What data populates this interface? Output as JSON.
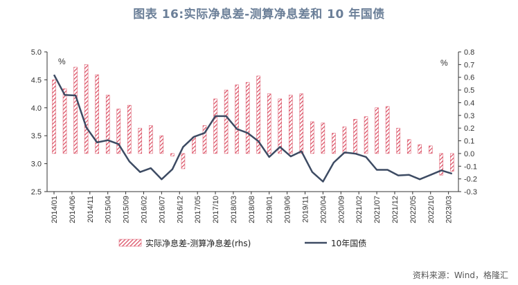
{
  "title": "图表 16:实际净息差-测算净息差和 10 年国债",
  "source": "资料来源：Wind，格隆汇",
  "chart_data": {
    "type": "bar+line",
    "left_axis": {
      "unit": "%",
      "ylim": [
        2.5,
        5.0
      ],
      "ticks": [
        "2.5",
        "3.0",
        "3.5",
        "4.0",
        "4.5",
        "5.0"
      ]
    },
    "right_axis": {
      "unit": "%",
      "ylim": [
        -0.3,
        0.8
      ],
      "ticks": [
        "-0.3",
        "-0.2",
        "-0.1",
        "0.0",
        "0.1",
        "0.2",
        "0.3",
        "0.4",
        "0.5",
        "0.6",
        "0.7",
        "0.8"
      ]
    },
    "x_tick_labels": [
      "2014/01",
      "2014/06",
      "2014/11",
      "2015/04",
      "2015/09",
      "2016/02",
      "2016/07",
      "2016/12",
      "2017/05",
      "2017/10",
      "2018/03",
      "2018/08",
      "2019/01",
      "2019/06",
      "2019/11",
      "2020/04",
      "2020/09",
      "2021/02",
      "2021/07",
      "2021/12",
      "2022/05",
      "2022/10",
      "2023/03"
    ],
    "series": [
      {
        "name": "实际净息差-测算净息差(rhs)",
        "type": "bar",
        "axis": "right",
        "color": "#d9475c",
        "x": [
          "2014/01",
          "2014/04",
          "2014/07",
          "2014/10",
          "2015/01",
          "2015/04",
          "2015/07",
          "2015/10",
          "2016/01",
          "2016/04",
          "2016/07",
          "2016/10",
          "2017/01",
          "2017/04",
          "2017/07",
          "2017/10",
          "2018/01",
          "2018/04",
          "2018/07",
          "2018/10",
          "2019/01",
          "2019/04",
          "2019/07",
          "2019/10",
          "2020/01",
          "2020/04",
          "2020/07",
          "2020/10",
          "2021/01",
          "2021/04",
          "2021/07",
          "2021/10",
          "2022/01",
          "2022/04",
          "2022/07",
          "2022/10",
          "2023/01",
          "2023/04"
        ],
        "values": [
          0.58,
          0.51,
          0.68,
          0.7,
          0.62,
          0.46,
          0.35,
          0.38,
          0.2,
          0.22,
          0.14,
          -0.02,
          -0.12,
          0.13,
          0.22,
          0.43,
          0.5,
          0.54,
          0.56,
          0.61,
          0.47,
          0.43,
          0.46,
          0.47,
          0.25,
          0.24,
          0.16,
          0.21,
          0.27,
          0.29,
          0.36,
          0.37,
          0.2,
          0.11,
          0.07,
          0.06,
          -0.17,
          -0.14
        ]
      },
      {
        "name": "10年国债",
        "type": "line",
        "axis": "left",
        "color": "#3d4b63",
        "x": [
          "2014/01",
          "2014/04",
          "2014/07",
          "2014/10",
          "2015/01",
          "2015/04",
          "2015/07",
          "2015/10",
          "2016/01",
          "2016/04",
          "2016/07",
          "2016/10",
          "2017/01",
          "2017/04",
          "2017/07",
          "2017/10",
          "2018/01",
          "2018/04",
          "2018/07",
          "2018/10",
          "2019/01",
          "2019/04",
          "2019/07",
          "2019/10",
          "2020/01",
          "2020/04",
          "2020/07",
          "2020/10",
          "2021/01",
          "2021/04",
          "2021/07",
          "2021/10",
          "2022/01",
          "2022/04",
          "2022/07",
          "2022/10",
          "2023/01",
          "2023/04"
        ],
        "values": [
          4.59,
          4.23,
          4.22,
          3.65,
          3.38,
          3.42,
          3.35,
          3.04,
          2.85,
          2.92,
          2.72,
          2.9,
          3.3,
          3.48,
          3.55,
          3.85,
          3.85,
          3.62,
          3.55,
          3.4,
          3.12,
          3.3,
          3.13,
          3.22,
          2.85,
          2.68,
          3.02,
          3.2,
          3.18,
          3.12,
          2.89,
          2.89,
          2.79,
          2.8,
          2.72,
          2.8,
          2.88,
          2.82
        ]
      }
    ],
    "legend_position": "bottom",
    "grid": false
  }
}
